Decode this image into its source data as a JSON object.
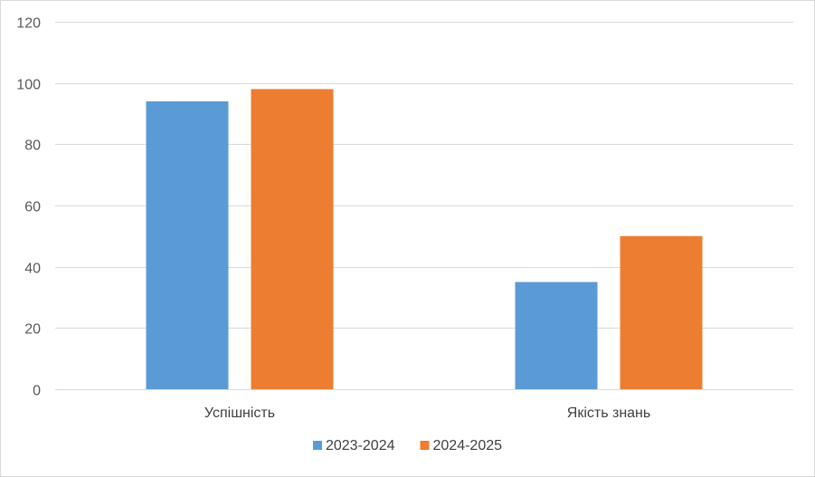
{
  "chart_data": {
    "type": "bar",
    "title": "",
    "xlabel": "",
    "ylabel": "",
    "categories": [
      "Успішність",
      "Якість знань"
    ],
    "series": [
      {
        "name": "2023-2024",
        "values": [
          94,
          35
        ],
        "color": "#5b9bd5"
      },
      {
        "name": "2024-2025",
        "values": [
          98,
          50
        ],
        "color": "#ed7d31"
      }
    ],
    "ylim": [
      0,
      120
    ],
    "yticks": [
      0,
      20,
      40,
      60,
      80,
      100,
      120
    ],
    "grid": true,
    "legend": "bottom",
    "gridColor": "#d9d9d9",
    "axisLabelColor": "#595959"
  }
}
